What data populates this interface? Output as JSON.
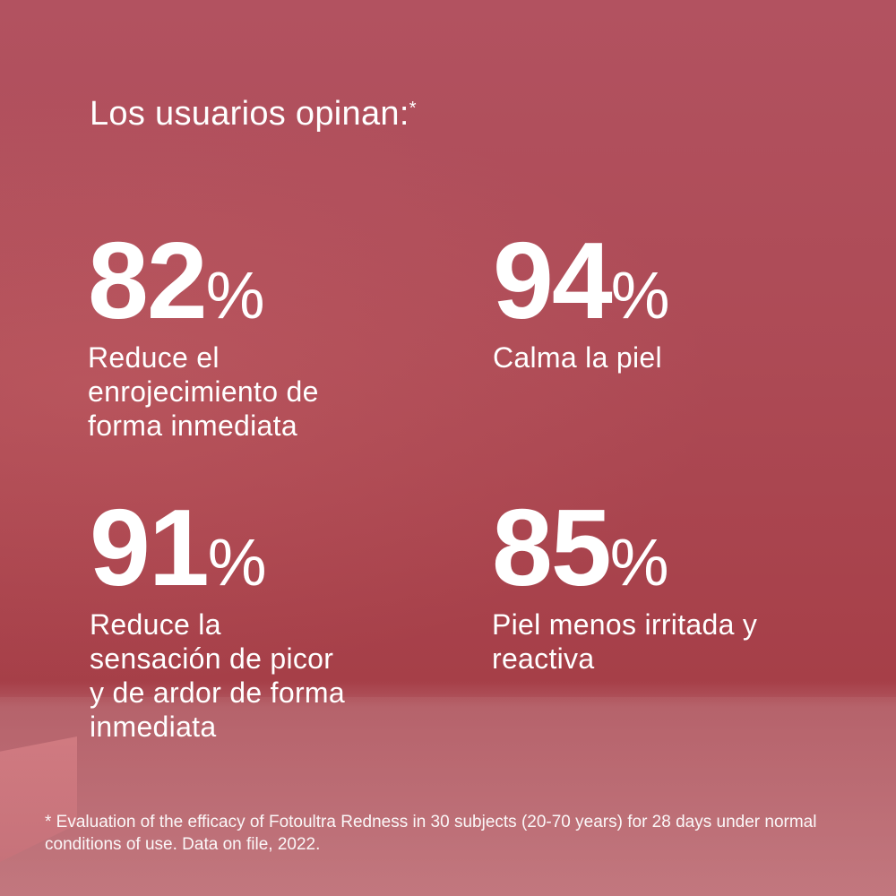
{
  "title": "Los usuarios opinan:",
  "title_marker": "*",
  "stats": [
    {
      "value": "82",
      "unit": "%",
      "label": "Reduce el enrojecimiento de forma inmediata"
    },
    {
      "value": "94",
      "unit": "%",
      "label": "Calma la piel"
    },
    {
      "value": "91",
      "unit": "%",
      "label": "Reduce la sensación de picor y de ardor de forma inmediata"
    },
    {
      "value": "85",
      "unit": "%",
      "label": "Piel menos irritada y reactiva"
    }
  ],
  "footnote": "* Evaluation of the efficacy of Fotoultra Redness in 30 subjects (20-70 years) for 28 days under normal conditions of use. Data on file, 2022.",
  "colors": {
    "background": "#ad4a55",
    "text": "#ffffff"
  }
}
